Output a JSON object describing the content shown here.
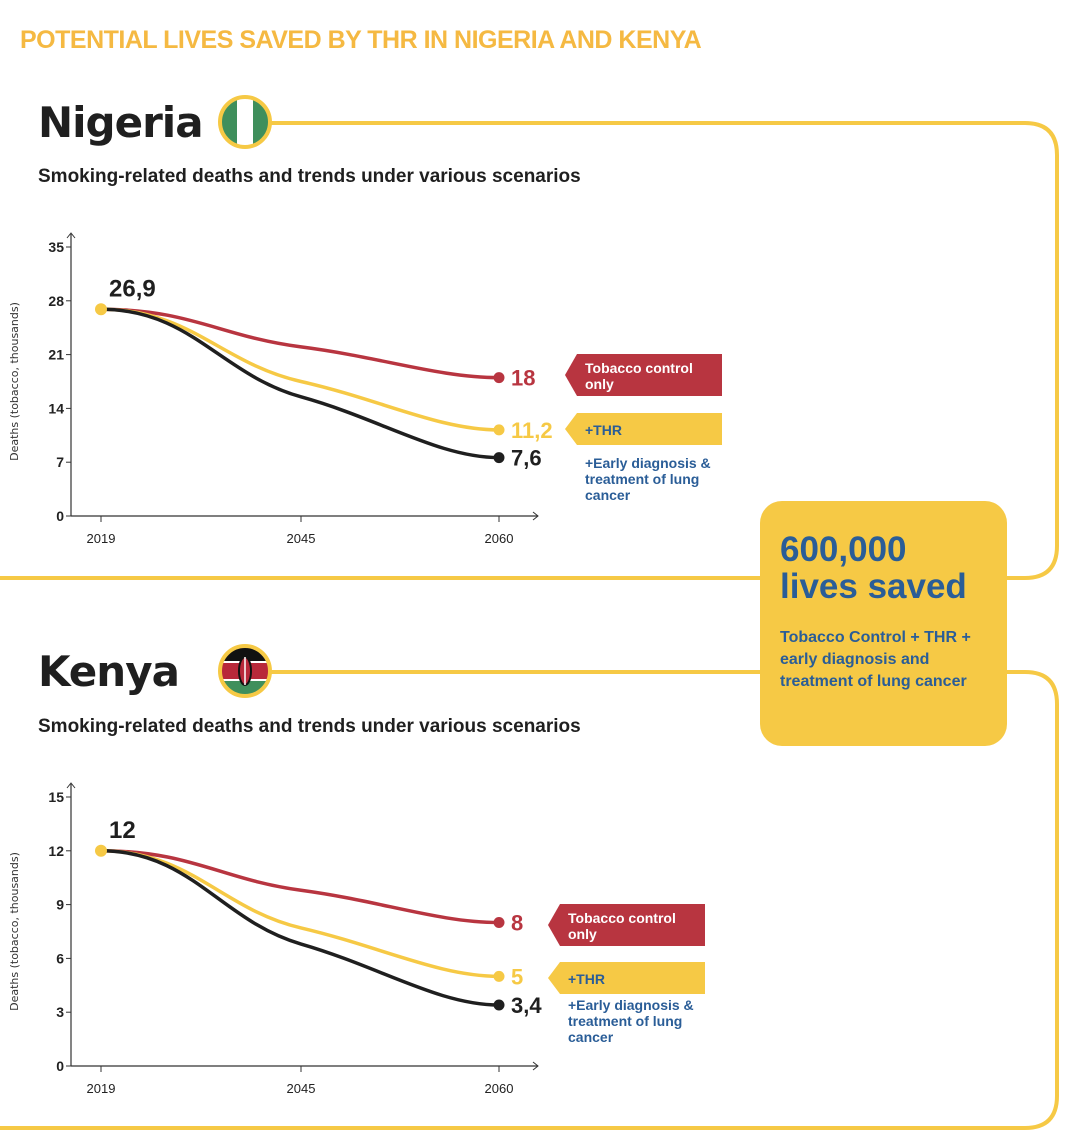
{
  "title": "POTENTIAL LIVES SAVED BY THR IN NIGERIA AND KENYA",
  "colors": {
    "accent": "#f6c945",
    "title": "#f5b942",
    "red": "#b83540",
    "yellow": "#f6c945",
    "black": "#1f1f1f",
    "blue": "#2a5d97"
  },
  "callout": {
    "big": "600,000 lives saved",
    "small": "Tobacco Control + THR + early diagnosis and treatment of lung cancer"
  },
  "legend": {
    "tobacco": "Tobacco control only",
    "thr": "+THR",
    "early": "+Early diagnosis & treatment of lung cancer"
  },
  "chart_data": [
    {
      "type": "line",
      "country": "Nigeria",
      "flag": "nigeria-flag",
      "subtitle": "Smoking-related deaths and trends under various scenarios",
      "ylabel": "Deaths (tobacco, thousands)",
      "ylim": [
        0,
        35
      ],
      "yticks": [
        "0",
        "7",
        "14",
        "21",
        "28",
        "35"
      ],
      "categories": [
        "2019",
        "2045",
        "2060"
      ],
      "start_label": "26,9",
      "series": [
        {
          "name": "Tobacco control only",
          "color": "#b83540",
          "values": [
            26.9,
            22,
            18
          ],
          "end_label": "18"
        },
        {
          "name": "+THR",
          "color": "#f6c945",
          "values": [
            26.9,
            17.5,
            11.2
          ],
          "end_label": "11,2"
        },
        {
          "name": "+Early diagnosis & treatment of lung cancer",
          "color": "#1f1f1f",
          "values": [
            26.9,
            15.5,
            7.6
          ],
          "end_label": "7,6"
        }
      ]
    },
    {
      "type": "line",
      "country": "Kenya",
      "flag": "kenya-flag",
      "subtitle": "Smoking-related deaths and trends under various scenarios",
      "ylabel": "Deaths (tobacco, thousands)",
      "ylim": [
        0,
        15
      ],
      "yticks": [
        "0",
        "3",
        "6",
        "9",
        "12",
        "15"
      ],
      "categories": [
        "2019",
        "2045",
        "2060"
      ],
      "start_label": "12",
      "series": [
        {
          "name": "Tobacco control only",
          "color": "#b83540",
          "values": [
            12,
            9.8,
            8
          ],
          "end_label": "8"
        },
        {
          "name": "+THR",
          "color": "#f6c945",
          "values": [
            12,
            7.7,
            5
          ],
          "end_label": "5"
        },
        {
          "name": "+Early diagnosis & treatment of lung cancer",
          "color": "#1f1f1f",
          "values": [
            12,
            6.8,
            3.4
          ],
          "end_label": "3,4"
        }
      ]
    }
  ]
}
